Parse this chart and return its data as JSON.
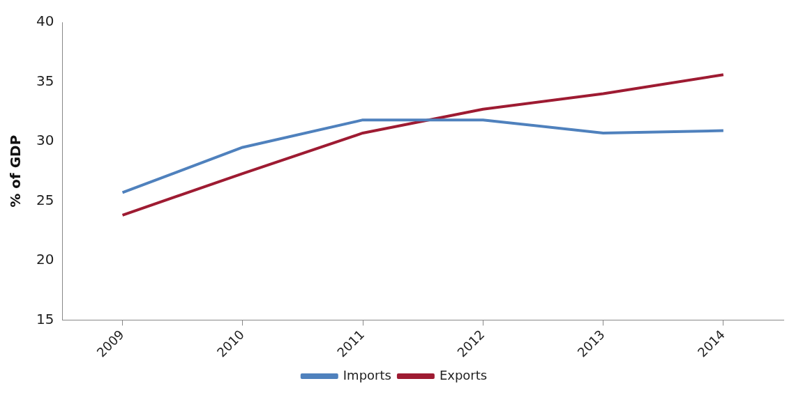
{
  "chart_data": {
    "type": "line",
    "ylabel": "% of GDP",
    "categories": [
      "2009",
      "2010",
      "2011",
      "2012",
      "2013",
      "2014"
    ],
    "series": [
      {
        "name": "Imports",
        "color": "#4f81bd",
        "values": [
          25.7,
          29.5,
          31.8,
          31.8,
          30.7,
          30.9
        ]
      },
      {
        "name": "Exports",
        "color": "#9e1b32",
        "values": [
          23.8,
          27.3,
          30.7,
          32.7,
          34.0,
          35.6
        ]
      }
    ],
    "ylim": [
      15,
      40
    ],
    "yticks": [
      15,
      20,
      25,
      30,
      35,
      40
    ],
    "grid": false,
    "legend": "bottom",
    "marker": "none",
    "line_style": "solid"
  }
}
